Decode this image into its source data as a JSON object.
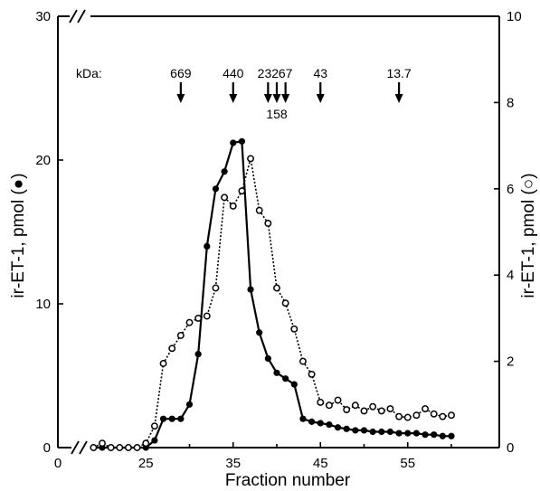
{
  "chart_data": {
    "type": "line",
    "xlabel": "Fraction number",
    "ylabel_left": "ir-ET-1, pmol (●)",
    "ylabel_right": "ir-ET-1, pmol (○)",
    "x_ticks": [
      "0",
      "25",
      "35",
      "45",
      "55"
    ],
    "y_left_ticks": [
      "0",
      "10",
      "20",
      "30"
    ],
    "y_right_ticks": [
      "0",
      "2",
      "4",
      "6",
      "8",
      "10"
    ],
    "xlim_broken": [
      0,
      60
    ],
    "y_left_lim": [
      0,
      30
    ],
    "y_right_lim": [
      0,
      10
    ],
    "axis_break": true,
    "grid": false,
    "markers": {
      "unit_label": "kDa:",
      "items": [
        {
          "label": "669",
          "x": 29,
          "label_position": "above"
        },
        {
          "label": "440",
          "x": 35,
          "label_position": "above"
        },
        {
          "label": "232",
          "x": 39,
          "label_position": "above"
        },
        {
          "label": "158",
          "x": 40,
          "label_position": "below"
        },
        {
          "label": "67",
          "x": 41,
          "label_position": "above"
        },
        {
          "label": "43",
          "x": 45,
          "label_position": "above"
        },
        {
          "label": "13.7",
          "x": 54,
          "label_position": "above"
        }
      ]
    },
    "series": [
      {
        "marker": "filled-circle",
        "line_style": "solid",
        "axis": "left",
        "x": [
          19,
          20,
          21,
          22,
          23,
          24,
          25,
          26,
          27,
          28,
          29,
          30,
          31,
          32,
          33,
          34,
          35,
          36,
          37,
          38,
          39,
          40,
          41,
          42,
          43,
          44,
          45,
          46,
          47,
          48,
          49,
          50,
          51,
          52,
          53,
          54,
          55,
          56,
          57,
          58,
          59,
          60
        ],
        "y": [
          0,
          0,
          0,
          0,
          0,
          0,
          0,
          0.5,
          2,
          2,
          2,
          3,
          6.5,
          14,
          18,
          19.2,
          21.2,
          21.3,
          11,
          8,
          6.2,
          5.2,
          4.8,
          4.4,
          2,
          1.8,
          1.7,
          1.6,
          1.4,
          1.3,
          1.2,
          1.2,
          1.1,
          1.1,
          1.1,
          1.0,
          1.0,
          1.0,
          0.9,
          0.9,
          0.8,
          0.8
        ]
      },
      {
        "marker": "open-circle",
        "line_style": "dotted",
        "axis": "right",
        "x": [
          19,
          20,
          21,
          22,
          23,
          24,
          25,
          26,
          27,
          28,
          29,
          30,
          31,
          32,
          33,
          34,
          35,
          36,
          37,
          38,
          39,
          40,
          41,
          42,
          43,
          44,
          45,
          46,
          47,
          48,
          49,
          50,
          51,
          52,
          53,
          54,
          55,
          56,
          57,
          58,
          59,
          60
        ],
        "y": [
          0,
          0.1,
          0,
          0,
          0,
          0,
          0.1,
          0.5,
          1.95,
          2.3,
          2.6,
          2.9,
          3.0,
          3.05,
          3.7,
          5.8,
          5.6,
          5.95,
          6.7,
          5.5,
          5.2,
          3.7,
          3.35,
          2.75,
          2.0,
          1.7,
          1.05,
          0.98,
          1.1,
          0.88,
          0.98,
          0.85,
          0.95,
          0.85,
          0.9,
          0.72,
          0.7,
          0.75,
          0.9,
          0.78,
          0.72,
          0.75
        ]
      }
    ]
  }
}
